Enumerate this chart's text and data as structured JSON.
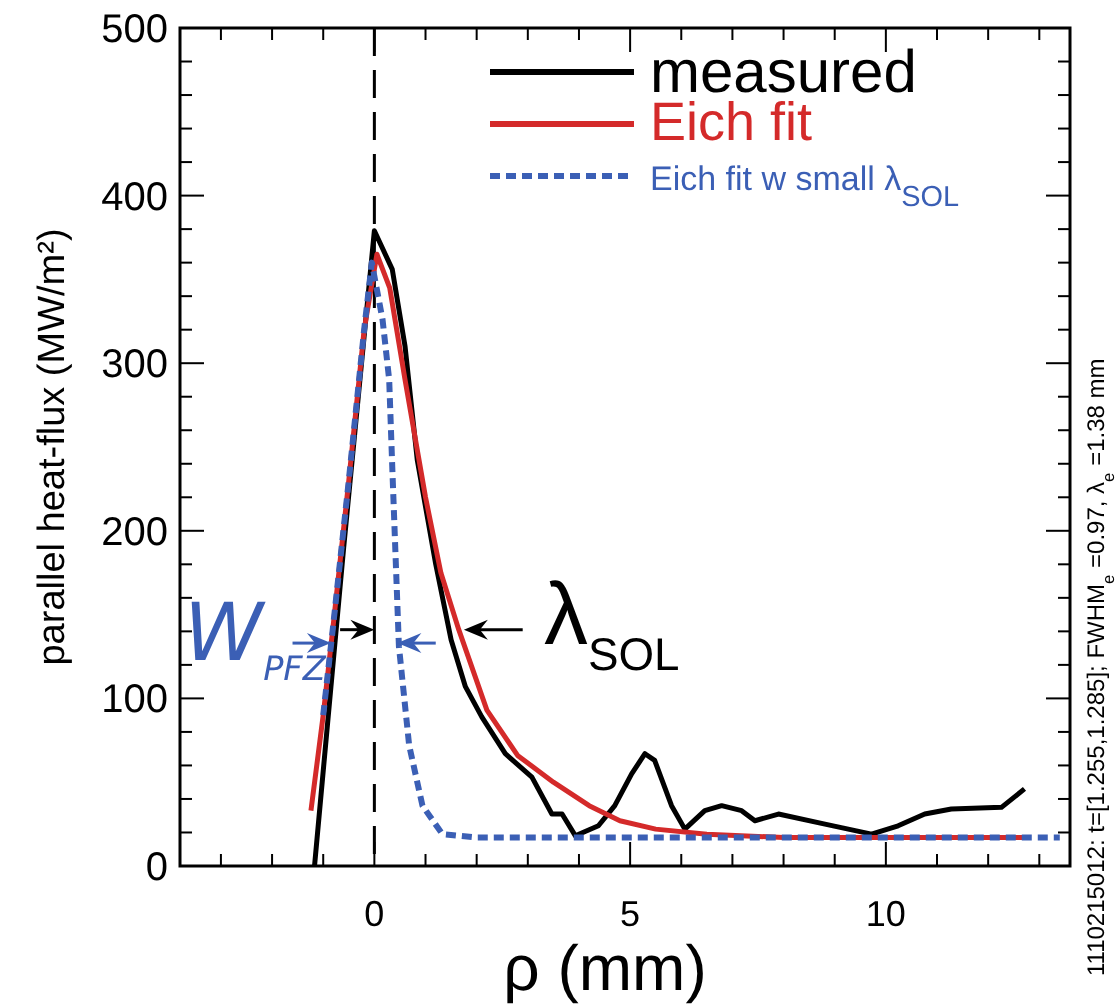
{
  "chart_data": {
    "type": "line",
    "xlabel": "ρ (mm)",
    "ylabel": "parallel heat-flux (MW/m²)",
    "xlim": [
      -3.8,
      13.6
    ],
    "ylim": [
      0,
      500
    ],
    "xticks": [
      {
        "value": -3,
        "label": null
      },
      {
        "value": -2,
        "label": null
      },
      {
        "value": -1,
        "label": null
      },
      0,
      {
        "value": 1,
        "label": null
      },
      {
        "value": 2,
        "label": null
      },
      {
        "value": 3,
        "label": null
      },
      {
        "value": 4,
        "label": null
      },
      5,
      {
        "value": 6,
        "label": null
      },
      {
        "value": 7,
        "label": null
      },
      {
        "value": 8,
        "label": null
      },
      {
        "value": 9,
        "label": null
      },
      10,
      {
        "value": 11,
        "label": null
      },
      {
        "value": 12,
        "label": null
      },
      {
        "value": 13,
        "label": null
      }
    ],
    "yticks": [
      0,
      {
        "value": 20,
        "label": null
      },
      {
        "value": 40,
        "label": null
      },
      {
        "value": 60,
        "label": null
      },
      {
        "value": 80,
        "label": null
      },
      100,
      {
        "value": 120,
        "label": null
      },
      {
        "value": 140,
        "label": null
      },
      {
        "value": 160,
        "label": null
      },
      {
        "value": 180,
        "label": null
      },
      200,
      {
        "value": 220,
        "label": null
      },
      {
        "value": 240,
        "label": null
      },
      {
        "value": 260,
        "label": null
      },
      {
        "value": 280,
        "label": null
      },
      300,
      {
        "value": 320,
        "label": null
      },
      {
        "value": 340,
        "label": null
      },
      {
        "value": 360,
        "label": null
      },
      {
        "value": 380,
        "label": null
      },
      400,
      {
        "value": 420,
        "label": null
      },
      {
        "value": 440,
        "label": null
      },
      {
        "value": 460,
        "label": null
      },
      {
        "value": 480,
        "label": null
      },
      500
    ],
    "legend": "top right",
    "grid": false,
    "series": [
      {
        "name": "measured",
        "color": "#000000",
        "line_style": "solid",
        "x": [
          -1.17,
          -0.6,
          0,
          0.35,
          0.6,
          0.84,
          1.2,
          1.5,
          1.78,
          2.1,
          2.56,
          3.08,
          3.47,
          3.67,
          3.93,
          4.38,
          4.7,
          5.03,
          5.29,
          5.48,
          5.81,
          6.07,
          6.46,
          6.79,
          7.18,
          7.44,
          7.9,
          8.81,
          9.72,
          10.24,
          10.76,
          11.28,
          12.26,
          12.71
        ],
        "values": [
          0,
          190,
          379,
          356,
          310,
          242,
          180,
          135,
          107,
          89,
          67,
          53,
          31,
          31,
          18,
          24,
          36,
          55,
          67,
          63,
          36,
          22,
          33,
          36,
          33,
          27,
          31,
          25,
          19,
          24,
          31,
          34,
          35,
          46
        ]
      },
      {
        "name": "Eich fit",
        "color": "#d42a2a",
        "line_style": "solid",
        "x": [
          -1.24,
          -1,
          -0.8,
          -0.5,
          -0.2,
          0.05,
          0.3,
          0.6,
          1,
          1.3,
          1.65,
          2.2,
          2.8,
          3.5,
          4.2,
          4.8,
          5.5,
          6.5,
          8,
          10,
          12.7
        ],
        "values": [
          33,
          90,
          145,
          230,
          320,
          365,
          345,
          290,
          220,
          175,
          141,
          93,
          66,
          50,
          36,
          27,
          22,
          19,
          17,
          17,
          17
        ]
      },
      {
        "name": "Eich fit w small λ$_{SOL}$",
        "color": "#3b5fb5",
        "line_style": "dashed",
        "x": [
          -1,
          -0.8,
          -0.5,
          -0.2,
          -0.05,
          0.16,
          0.29,
          0.35,
          0.48,
          0.68,
          0.94,
          1.33,
          2,
          6,
          10,
          13.4
        ],
        "values": [
          90,
          145,
          230,
          320,
          360,
          326,
          290,
          238,
          131,
          72,
          36,
          19,
          17,
          17,
          17,
          17
        ]
      }
    ],
    "ref_lines": [
      {
        "axis": "x",
        "value": 0,
        "label": null,
        "color": "#000000",
        "line_style": "dashed"
      }
    ],
    "annotations": [
      "W$_{PFZ}$",
      "λ$_{SOL}$",
      "1110215012: t=[1.255,1.285]; FWHM$_{e}$=0.97, λ$_{e}$=1.38 mm"
    ]
  }
}
